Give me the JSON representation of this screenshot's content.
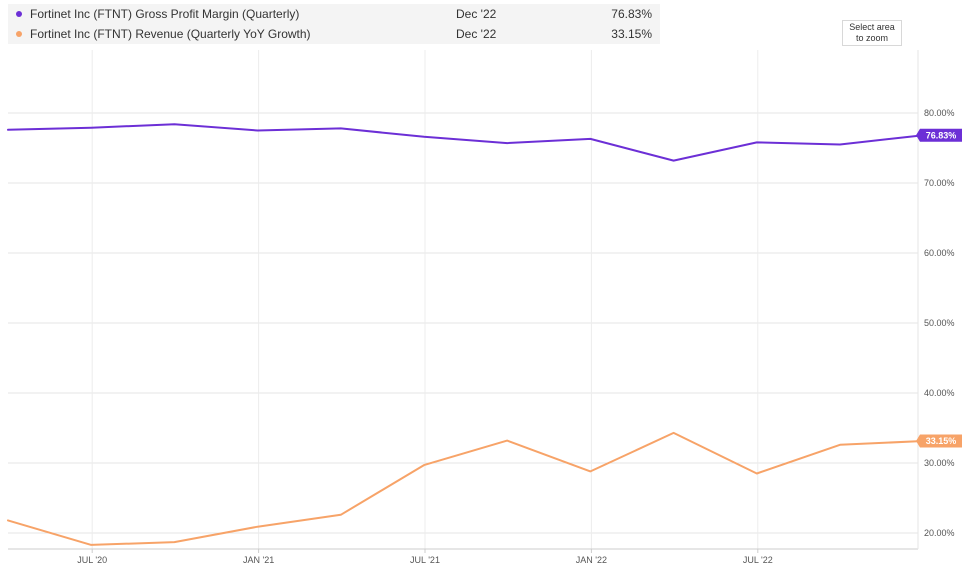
{
  "legend": {
    "items": [
      {
        "name": "Fortinet Inc (FTNT) Gross Profit Margin (Quarterly)",
        "date": "Dec '22",
        "value": "76.83%",
        "color": "#6c2fd6"
      },
      {
        "name": "Fortinet Inc (FTNT) Revenue (Quarterly YoY Growth)",
        "date": "Dec '22",
        "value": "33.15%",
        "color": "#f7a368"
      }
    ]
  },
  "toolbar": {
    "zoom_label": "Select area to zoom"
  },
  "chart_data": {
    "type": "line",
    "x": [
      "Mar '20",
      "Jun '20",
      "Sep '20",
      "Dec '20",
      "Mar '21",
      "Jun '21",
      "Sep '21",
      "Dec '21",
      "Mar '22",
      "Jun '22",
      "Sep '22",
      "Dec '22"
    ],
    "x_tick_labels": [
      "JUL '20",
      "JAN '21",
      "JUL '21",
      "JAN '22",
      "JUL '22"
    ],
    "y_tick_labels": [
      "20.00%",
      "30.00%",
      "40.00%",
      "50.00%",
      "60.00%",
      "70.00%",
      "80.00%"
    ],
    "ylim": [
      18,
      85
    ],
    "series": [
      {
        "name": "Fortinet Inc (FTNT) Gross Profit Margin (Quarterly)",
        "color": "#6c2fd6",
        "end_label": "76.83%",
        "values": [
          77.6,
          77.9,
          78.4,
          77.5,
          77.8,
          76.6,
          75.7,
          76.3,
          73.2,
          75.8,
          75.5,
          76.83
        ]
      },
      {
        "name": "Fortinet Inc (FTNT) Revenue (Quarterly YoY Growth)",
        "color": "#f7a368",
        "end_label": "33.15%",
        "values": [
          21.8,
          18.3,
          18.7,
          20.9,
          22.6,
          29.7,
          33.2,
          28.8,
          34.3,
          28.5,
          32.6,
          33.15
        ]
      }
    ],
    "grid": true,
    "legend_position": "top-left"
  }
}
